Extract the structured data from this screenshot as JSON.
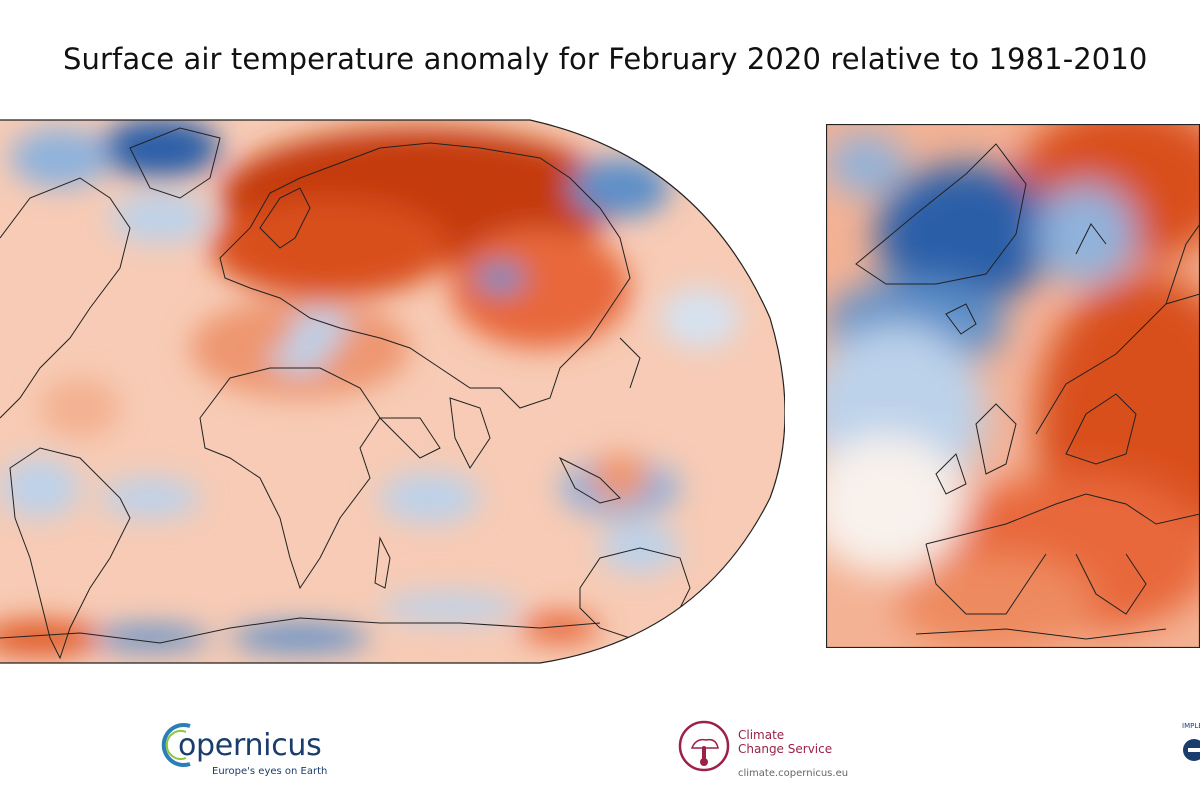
{
  "title": "Surface air temperature anomaly for February 2020 relative to 1981-2010",
  "maps": [
    {
      "region": "global",
      "projection": "robinson"
    },
    {
      "region": "europe"
    }
  ],
  "colors": {
    "warm_strong": "#c43a0c",
    "warm": "#e8683a",
    "warm_light": "#f7c3a8",
    "neutral": "#f8f1ec",
    "cool_light": "#bcd2ea",
    "cool": "#5d8fc8",
    "cool_strong": "#2a5fa8",
    "coastline": "#222222"
  },
  "logos": {
    "copernicus": {
      "name": "opernicus",
      "tagline": "Europe's eyes on Earth"
    },
    "c3s": {
      "name_line1": "Climate",
      "name_line2": "Change Service",
      "url": "climate.copernicus.eu"
    },
    "ecmwf": {
      "text": "IMPLE"
    }
  }
}
